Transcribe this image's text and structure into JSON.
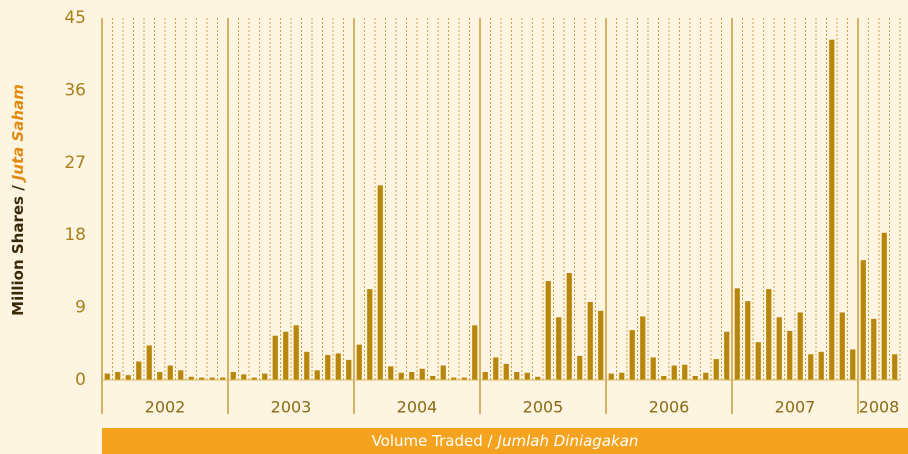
{
  "chart_data": {
    "type": "bar",
    "ylabel": {
      "main": "Million Shares /",
      "translation": "Juta Saham"
    },
    "xlabel": {
      "main": "Volume Traded /",
      "translation": "Jumlah Diniagakan"
    },
    "color": "#b8860b",
    "ylim": [
      0,
      45
    ],
    "yticks": [
      0,
      9,
      18,
      27,
      36,
      45
    ],
    "years": [
      {
        "label": "2002",
        "values": [
          0.8,
          1.0,
          0.6,
          2.3,
          4.3,
          1.0,
          1.8,
          1.2,
          0.4,
          0.3,
          0.3,
          0.3
        ]
      },
      {
        "label": "2003",
        "values": [
          1.0,
          0.7,
          0.3,
          0.8,
          5.5,
          6.0,
          6.8,
          3.5,
          1.2,
          3.1,
          3.3,
          2.5
        ]
      },
      {
        "label": "2004",
        "values": [
          4.4,
          11.3,
          24.2,
          1.7,
          0.9,
          1.0,
          1.4,
          0.5,
          1.8,
          0.3,
          0.3,
          6.8
        ]
      },
      {
        "label": "2005",
        "values": [
          1.0,
          2.8,
          2.0,
          1.0,
          0.9,
          0.4,
          12.3,
          7.8,
          13.3,
          3.0,
          9.7,
          8.6
        ]
      },
      {
        "label": "2006",
        "values": [
          0.8,
          0.9,
          6.2,
          7.9,
          2.8,
          0.5,
          1.8,
          1.9,
          0.5,
          0.9,
          2.6,
          6.0
        ]
      },
      {
        "label": "2007",
        "values": [
          11.4,
          9.8,
          4.7,
          11.3,
          7.8,
          6.1,
          8.4,
          3.2,
          3.5,
          42.3,
          8.4,
          3.8
        ]
      },
      {
        "label": "2008",
        "values": [
          14.9,
          7.6,
          18.3,
          3.2
        ]
      }
    ]
  }
}
